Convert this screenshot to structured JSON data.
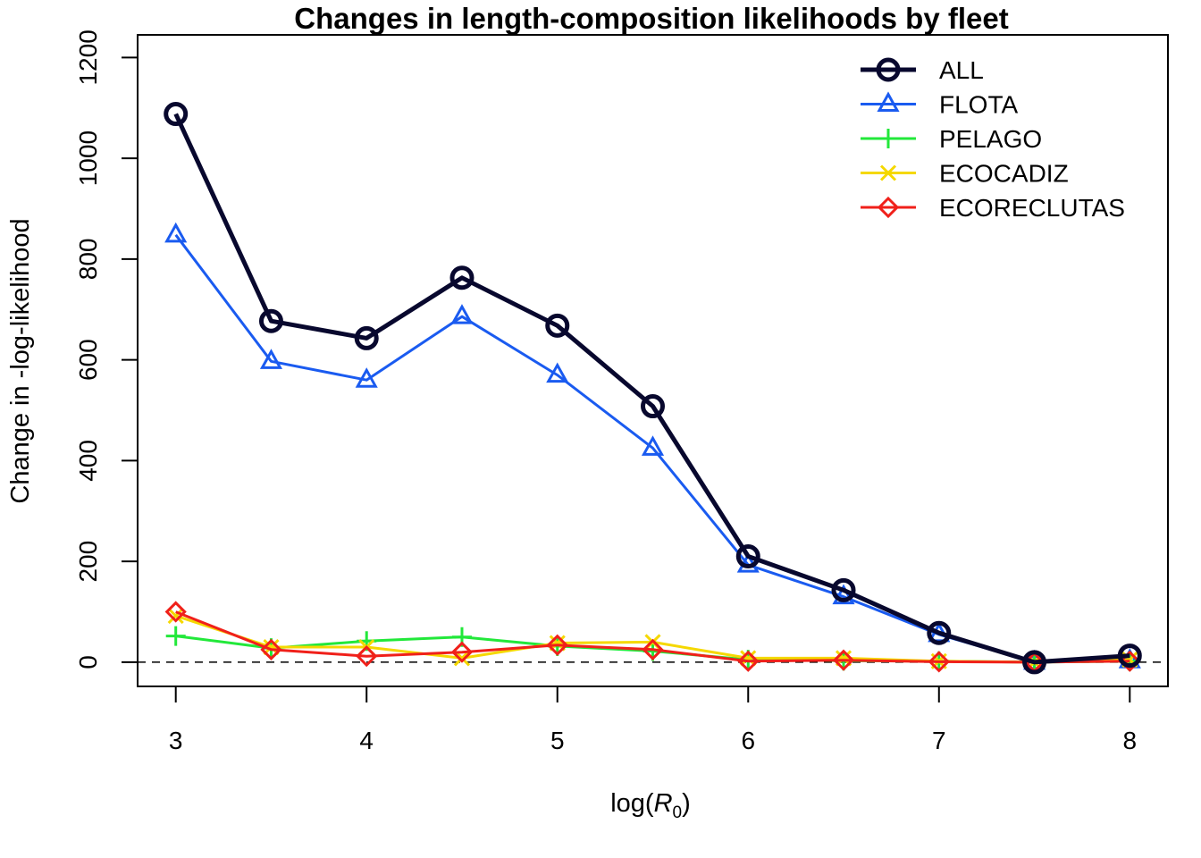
{
  "chart_data": {
    "type": "line",
    "title": "Changes in length-composition likelihoods by fleet",
    "xlabel": "log(R0)",
    "xlabel_main": "log(",
    "xlabel_sym": "R",
    "xlabel_sub": "0",
    "xlabel_close": ")",
    "ylabel": "Change in -log-likelihood",
    "xlim": [
      2.8,
      8.2
    ],
    "ylim": [
      -48,
      1245
    ],
    "x_ticks": [
      3,
      4,
      5,
      6,
      7,
      8
    ],
    "y_ticks": [
      0,
      200,
      400,
      600,
      800,
      1000,
      1200
    ],
    "reference_line_y": 0,
    "legend_position": "top-right",
    "x": [
      3,
      3.5,
      4,
      4.5,
      5,
      5.5,
      6,
      6.5,
      7,
      7.5,
      8
    ],
    "series": [
      {
        "name": "ALL",
        "color": "#08082e",
        "marker": "circle",
        "line_width": 5,
        "values": [
          1088,
          677,
          643,
          763,
          668,
          508,
          210,
          143,
          58,
          0,
          13
        ]
      },
      {
        "name": "FLOTA",
        "color": "#1a5bf0",
        "marker": "triangle",
        "line_width": 3,
        "values": [
          848,
          597,
          560,
          686,
          570,
          425,
          193,
          130,
          55,
          0,
          3
        ]
      },
      {
        "name": "PELAGO",
        "color": "#22e83a",
        "marker": "plus",
        "line_width": 3,
        "values": [
          52,
          28,
          42,
          50,
          32,
          22,
          5,
          3,
          2,
          0,
          2
        ]
      },
      {
        "name": "ECOCADIZ",
        "color": "#f5d800",
        "marker": "x",
        "line_width": 3,
        "values": [
          92,
          30,
          30,
          8,
          38,
          40,
          8,
          8,
          2,
          0,
          5
        ]
      },
      {
        "name": "ECORECLUTAS",
        "color": "#f0201a",
        "marker": "diamond",
        "line_width": 3,
        "values": [
          100,
          25,
          12,
          20,
          34,
          25,
          2,
          4,
          1,
          0,
          2
        ]
      }
    ]
  }
}
